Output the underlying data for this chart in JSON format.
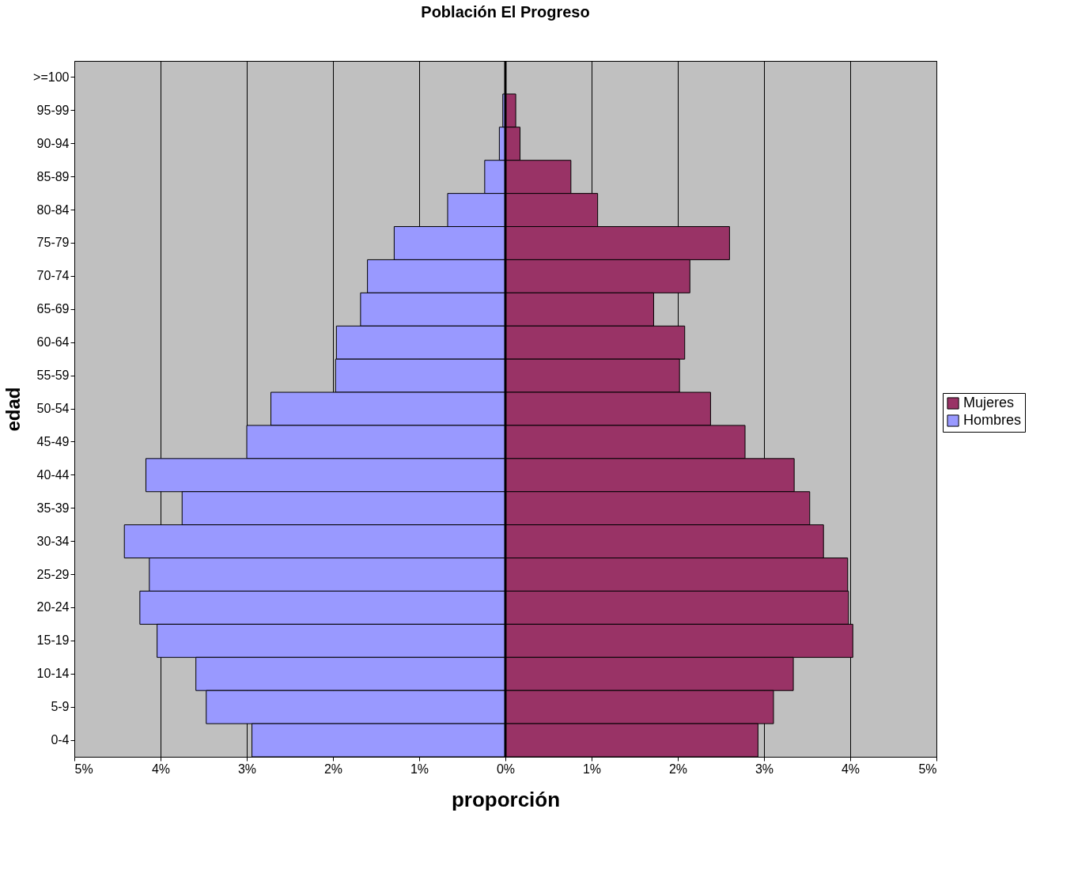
{
  "chart_data": {
    "type": "bar",
    "orientation": "horizontal",
    "title": "Población El Progreso",
    "xlabel": "proporción",
    "ylabel": "edad",
    "categories": [
      ">=100",
      "95-99",
      "90-94",
      "85-89",
      "80-84",
      "75-79",
      "70-74",
      "65-69",
      "60-64",
      "55-59",
      "50-54",
      "45-49",
      "40-44",
      "35-39",
      "30-34",
      "25-29",
      "20-24",
      "15-19",
      "10-14",
      "5-9",
      "0-4"
    ],
    "series": [
      {
        "name": "Mujeres",
        "color": "#993366",
        "values": [
          0,
          0.12,
          0.17,
          0.76,
          1.07,
          2.6,
          2.14,
          1.72,
          2.08,
          2.02,
          2.38,
          2.78,
          3.35,
          3.53,
          3.69,
          3.97,
          3.98,
          4.03,
          3.34,
          3.11,
          2.93
        ]
      },
      {
        "name": "Hombres",
        "color": "#9999ff",
        "values": [
          0,
          -0.03,
          -0.07,
          -0.24,
          -0.67,
          -1.29,
          -1.6,
          -1.68,
          -1.96,
          -1.97,
          -2.72,
          -3.0,
          -4.17,
          -3.75,
          -4.42,
          -4.13,
          -4.24,
          -4.04,
          -3.59,
          -3.47,
          -2.94
        ]
      }
    ],
    "xlim": [
      -5,
      5
    ],
    "xticks": [
      {
        "value": -5,
        "label": "5%"
      },
      {
        "value": -4,
        "label": "4%"
      },
      {
        "value": -3,
        "label": "3%"
      },
      {
        "value": -2,
        "label": "2%"
      },
      {
        "value": -1,
        "label": "1%"
      },
      {
        "value": 0,
        "label": "0%"
      },
      {
        "value": 1,
        "label": "1%"
      },
      {
        "value": 2,
        "label": "2%"
      },
      {
        "value": 3,
        "label": "3%"
      },
      {
        "value": 4,
        "label": "4%"
      },
      {
        "value": 5,
        "label": "5%"
      }
    ],
    "ref_lines": [
      {
        "axis": "x",
        "value": 0,
        "color": "#000000"
      }
    ],
    "grid": "x",
    "legend": "right",
    "stacked": true
  }
}
